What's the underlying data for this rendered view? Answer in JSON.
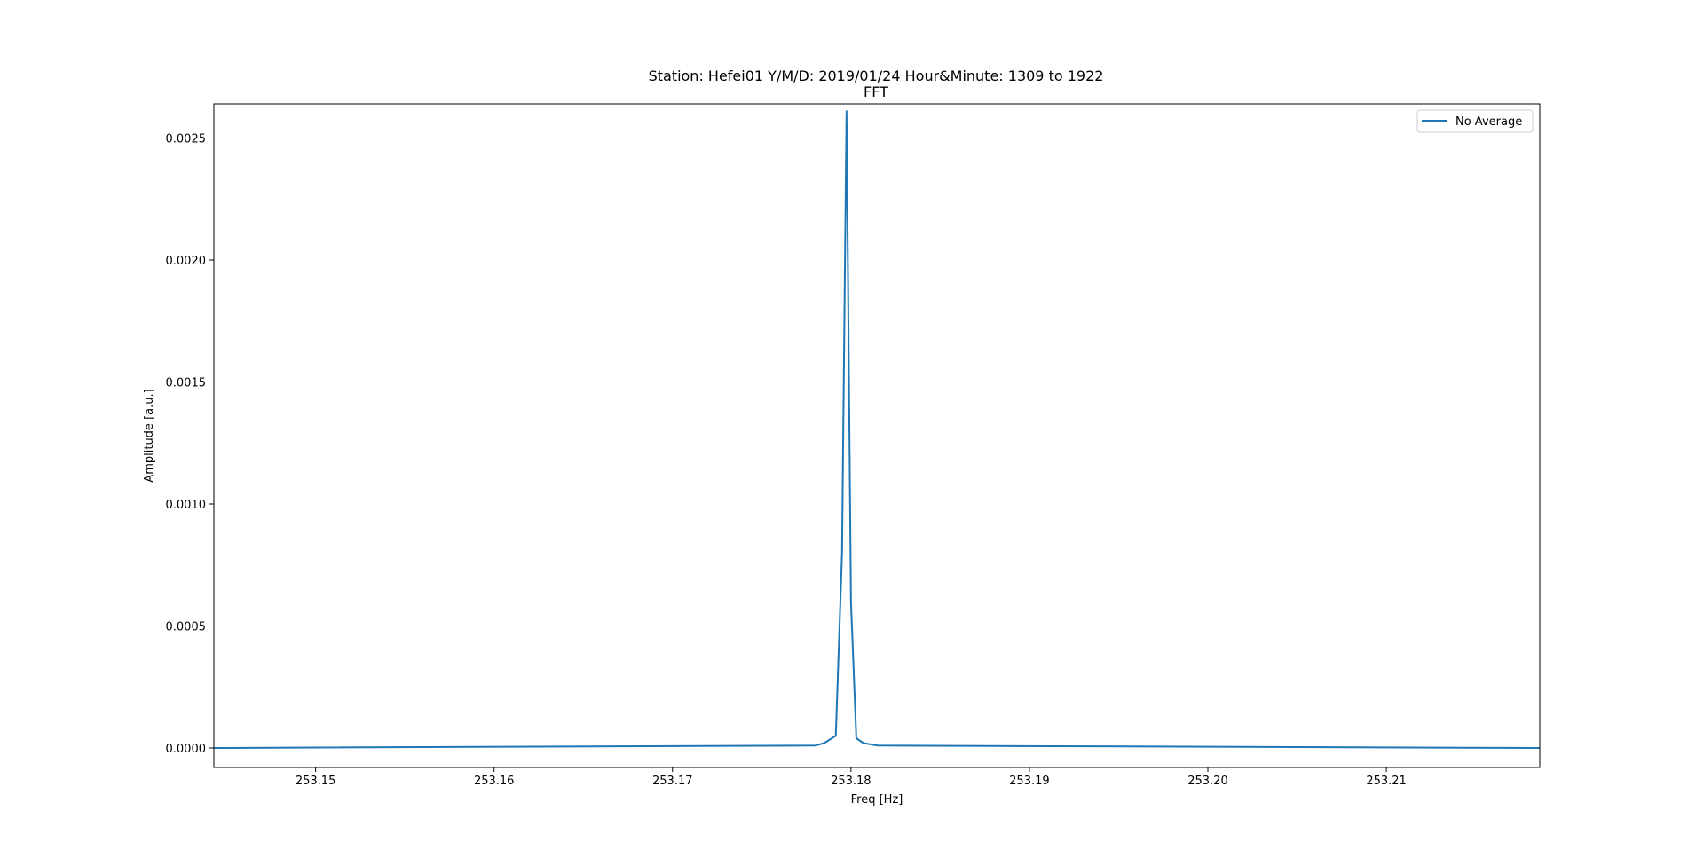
{
  "chart_data": {
    "type": "line",
    "title": "Station: Hefei01 Y/M/D: 2019/01/24 Hour&Minute: 1309 to 1922",
    "subtitle": "FFT",
    "xlabel": "Freq [Hz]",
    "ylabel": "Amplitude [a.u.]",
    "xlim": [
      253.1443,
      253.2186
    ],
    "ylim": [
      -8e-05,
      0.00264
    ],
    "x_ticks": [
      253.15,
      253.16,
      253.17,
      253.18,
      253.19,
      253.2,
      253.21
    ],
    "x_tick_labels": [
      "253.15",
      "253.16",
      "253.17",
      "253.18",
      "253.19",
      "253.20",
      "253.21"
    ],
    "y_ticks": [
      0.0,
      0.0005,
      0.001,
      0.0015,
      0.002,
      0.0025
    ],
    "y_tick_labels": [
      "0.0000",
      "0.0005",
      "0.0010",
      "0.0015",
      "0.0020",
      "0.0025"
    ],
    "grid": false,
    "legend_position": "top-right",
    "series": [
      {
        "name": "No Average",
        "color": "#1f77b4",
        "x": [
          253.1443,
          253.178,
          253.1785,
          253.17915,
          253.1795,
          253.17975,
          253.18,
          253.1803,
          253.1807,
          253.1815,
          253.2186
        ],
        "y": [
          0.0,
          1e-05,
          2e-05,
          5e-05,
          0.0008,
          0.00261,
          0.0006,
          4e-05,
          2e-05,
          1e-05,
          0.0
        ]
      }
    ]
  }
}
